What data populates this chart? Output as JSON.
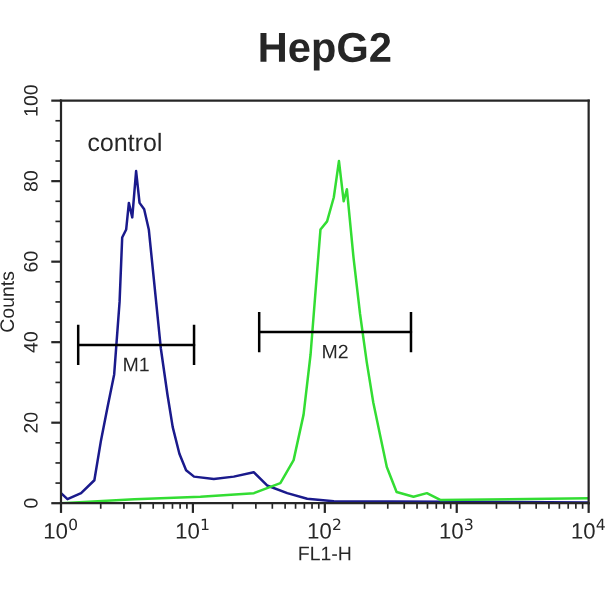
{
  "chart_data": {
    "type": "line",
    "title": "HepG2",
    "xlabel": "FL1-H",
    "ylabel": "Counts",
    "log": "x",
    "xlim": [
      1,
      10000
    ],
    "ylim": [
      0,
      100
    ],
    "xticks": [
      {
        "value": 1,
        "label": "10$^{0}$"
      },
      {
        "value": 10,
        "label": "10$^{1}$"
      },
      {
        "value": 100,
        "label": "10$^{2}$"
      },
      {
        "value": 1000,
        "label": "10$^{3}$"
      },
      {
        "value": 10000,
        "label": "10$^{4}$"
      }
    ],
    "yticks": [
      0,
      20,
      40,
      60,
      80,
      100
    ],
    "grid": false,
    "legend": false,
    "marker": "none",
    "line_style": "solid",
    "annotations": [
      "control"
    ],
    "series": [
      {
        "color": "#1a1a8c",
        "x": [
          1,
          1.12,
          1.42,
          1.79,
          2.01,
          2.25,
          2.53,
          2.78,
          2.91,
          3.12,
          3.27,
          3.47,
          3.71,
          3.94,
          4.27,
          4.63,
          5.08,
          5.71,
          6.41,
          7.03,
          7.9,
          8.88,
          10.2,
          14.4,
          20.4,
          28.9,
          36.5,
          51.9,
          73.5,
          117,
          10000
        ],
        "values": [
          2.5,
          1,
          2.5,
          5.7,
          15.6,
          23.8,
          32,
          50,
          66,
          68,
          74.6,
          71,
          82.5,
          74.6,
          73,
          68,
          55,
          38.5,
          27,
          18.9,
          12.3,
          8.2,
          6.6,
          6,
          6.6,
          7.7,
          4.4,
          2.5,
          1.1,
          0.5,
          0.2
        ]
      },
      {
        "color": "#33dd33",
        "x": [
          1,
          3.6,
          11.4,
          29,
          46,
          58,
          69,
          78,
          87.6,
          92.7,
          104,
          117,
          128,
          139,
          147,
          165,
          185,
          208,
          233,
          262,
          295,
          350,
          470,
          594,
          750,
          10000
        ],
        "values": [
          0,
          1,
          1.6,
          2.5,
          5,
          10.7,
          22,
          37,
          58,
          68,
          70,
          76,
          85,
          75,
          78,
          61,
          47,
          35,
          25,
          17,
          9,
          2.8,
          1.6,
          2.5,
          0.8,
          1.2
        ]
      },
      {
        "name": "M1",
        "color": "#000000",
        "x": [
          1.35,
          10.2
        ],
        "values": [
          39.3,
          39.3
        ],
        "errors": [
          5,
          5
        ]
      },
      {
        "name": "M2",
        "color": "#000000",
        "x": [
          31.8,
          450
        ],
        "values": [
          42.5,
          42.5
        ],
        "errors": [
          5,
          5
        ]
      }
    ]
  }
}
